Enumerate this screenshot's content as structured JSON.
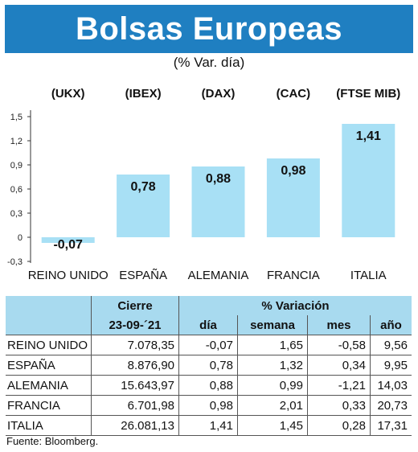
{
  "header": {
    "title": "Bolsas Europeas",
    "subtitle": "(% Var. día)"
  },
  "chart_data": {
    "type": "bar",
    "categories": [
      "REINO UNIDO",
      "ESPAÑA",
      "ALEMANIA",
      "FRANCIA",
      "ITALIA"
    ],
    "index_codes": [
      "(UKX)",
      "(IBEX)",
      "(DAX)",
      "(CAC)",
      "(FTSE MIB)"
    ],
    "values": [
      -0.07,
      0.78,
      0.88,
      0.98,
      1.41
    ],
    "value_labels": [
      "-0,07",
      "0,78",
      "0,88",
      "0,98",
      "1,41"
    ],
    "yticks": [
      -0.3,
      0,
      0.3,
      0.6,
      0.9,
      1.2,
      1.5
    ],
    "ytick_labels": [
      "-0,3",
      "0",
      "0,3",
      "0,6",
      "0,9",
      "1,2",
      "1,5"
    ],
    "ylim": [
      -0.3,
      1.5
    ],
    "bar_color": "#a8e0f5",
    "grid": false
  },
  "table": {
    "header": {
      "cierre": "Cierre",
      "variacion": "% Variación",
      "date": "23-09-´21",
      "dia": "día",
      "semana": "semana",
      "mes": "mes",
      "ano": "año"
    },
    "rows": [
      {
        "name": "REINO UNIDO",
        "cierre": "7.078,35",
        "dia": "-0,07",
        "semana": "1,65",
        "mes": "-0,58",
        "ano": "9,56"
      },
      {
        "name": "ESPAÑA",
        "cierre": "8.876,90",
        "dia": "0,78",
        "semana": "1,32",
        "mes": "0,34",
        "ano": "9,95"
      },
      {
        "name": "ALEMANIA",
        "cierre": "15.643,97",
        "dia": "0,88",
        "semana": "0,99",
        "mes": "-1,21",
        "ano": "14,03"
      },
      {
        "name": "FRANCIA",
        "cierre": "6.701,98",
        "dia": "0,98",
        "semana": "2,01",
        "mes": "0,33",
        "ano": "20,73"
      },
      {
        "name": "ITALIA",
        "cierre": "26.081,13",
        "dia": "1,41",
        "semana": "1,45",
        "mes": "0,28",
        "ano": "17,31"
      }
    ]
  },
  "source": "Fuente: Bloomberg.",
  "colors": {
    "title_band": "#1f7fc1",
    "table_header": "#a8daef"
  }
}
